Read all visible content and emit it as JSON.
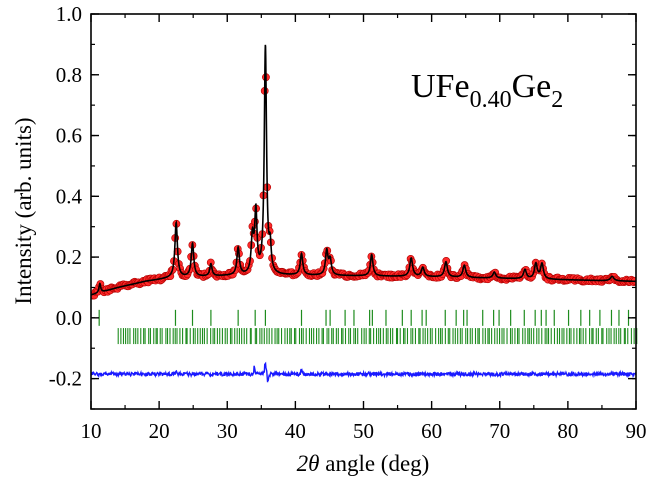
{
  "chart_data": {
    "type": "scatter",
    "title": "",
    "annotation": {
      "base": "UFe",
      "sub1": "0.40",
      "mid": "Ge",
      "sub2": "2"
    },
    "xlabel": {
      "italic": "2θ",
      "rest": " angle (deg)"
    },
    "ylabel": "Intensity (arb. units)",
    "xlim": [
      10,
      90
    ],
    "ylim": [
      -0.3,
      1.0
    ],
    "xticks": [
      10,
      20,
      30,
      40,
      50,
      60,
      70,
      80,
      90
    ],
    "yticks": [
      1.0,
      0.8,
      0.6,
      0.4,
      0.2,
      0.0,
      -0.2
    ],
    "ytick_labels": [
      "1.0",
      "0.8",
      "0.6",
      "0.4",
      "0.2",
      "0.0",
      "-0.2"
    ],
    "grid": false,
    "legend": "none",
    "colors": {
      "observed": "#ff2a2a",
      "observed_edge": "#b00000",
      "calculated": "#000000",
      "difference": "#1a1aff",
      "bragg": "#1e8c1e"
    },
    "background": {
      "x": [
        10,
        14,
        18,
        22,
        30,
        40,
        50,
        60,
        70,
        80,
        90
      ],
      "y": [
        0.075,
        0.1,
        0.12,
        0.132,
        0.138,
        0.14,
        0.138,
        0.135,
        0.13,
        0.125,
        0.12
      ]
    },
    "peaks": [
      {
        "x": 11.3,
        "h": 0.03,
        "w": 0.15
      },
      {
        "x": 22.5,
        "h": 0.18,
        "w": 0.22
      },
      {
        "x": 24.9,
        "h": 0.11,
        "w": 0.22
      },
      {
        "x": 27.6,
        "h": 0.04,
        "w": 0.2
      },
      {
        "x": 31.6,
        "h": 0.09,
        "w": 0.22
      },
      {
        "x": 33.7,
        "h": 0.12,
        "w": 0.22
      },
      {
        "x": 34.2,
        "h": 0.2,
        "w": 0.2
      },
      {
        "x": 35.6,
        "h": 0.75,
        "w": 0.2
      },
      {
        "x": 36.3,
        "h": 0.08,
        "w": 0.18
      },
      {
        "x": 40.9,
        "h": 0.07,
        "w": 0.22
      },
      {
        "x": 44.6,
        "h": 0.08,
        "w": 0.22
      },
      {
        "x": 45.1,
        "h": 0.05,
        "w": 0.22
      },
      {
        "x": 51.2,
        "h": 0.07,
        "w": 0.22
      },
      {
        "x": 57.0,
        "h": 0.06,
        "w": 0.25
      },
      {
        "x": 58.7,
        "h": 0.03,
        "w": 0.25
      },
      {
        "x": 62.1,
        "h": 0.05,
        "w": 0.25
      },
      {
        "x": 64.8,
        "h": 0.04,
        "w": 0.25
      },
      {
        "x": 69.2,
        "h": 0.02,
        "w": 0.25
      },
      {
        "x": 73.7,
        "h": 0.03,
        "w": 0.25
      },
      {
        "x": 75.3,
        "h": 0.05,
        "w": 0.25
      },
      {
        "x": 76.2,
        "h": 0.05,
        "w": 0.25
      },
      {
        "x": 86.5,
        "h": 0.015,
        "w": 0.3
      }
    ],
    "observed_step": 0.18,
    "bragg_rows": [
      {
        "y": 0.0,
        "positions": [
          11.2,
          22.4,
          24.9,
          27.6,
          31.6,
          34.1,
          35.6,
          40.9,
          44.5,
          45.1,
          47.3,
          48.6,
          50.9,
          51.3,
          53.3,
          55.7,
          57.0,
          58.6,
          59.2,
          62.0,
          63.6,
          64.7,
          65.2,
          67.5,
          69.1,
          69.9,
          71.6,
          73.6,
          75.2,
          76.1,
          76.8,
          78.0,
          80.1,
          81.9,
          83.2,
          84.7,
          86.4,
          87.5,
          88.9
        ]
      },
      {
        "y": -0.06,
        "range": [
          14,
          90
        ],
        "count": 210
      }
    ],
    "difference": {
      "y0": -0.185,
      "noise": 0.006,
      "features": [
        {
          "x": 34.0,
          "d": 0.03
        },
        {
          "x": 35.6,
          "d": 0.05
        },
        {
          "x": 36.0,
          "d": -0.03
        },
        {
          "x": 22.5,
          "d": 0.015
        },
        {
          "x": 40.9,
          "d": 0.015
        }
      ]
    }
  }
}
